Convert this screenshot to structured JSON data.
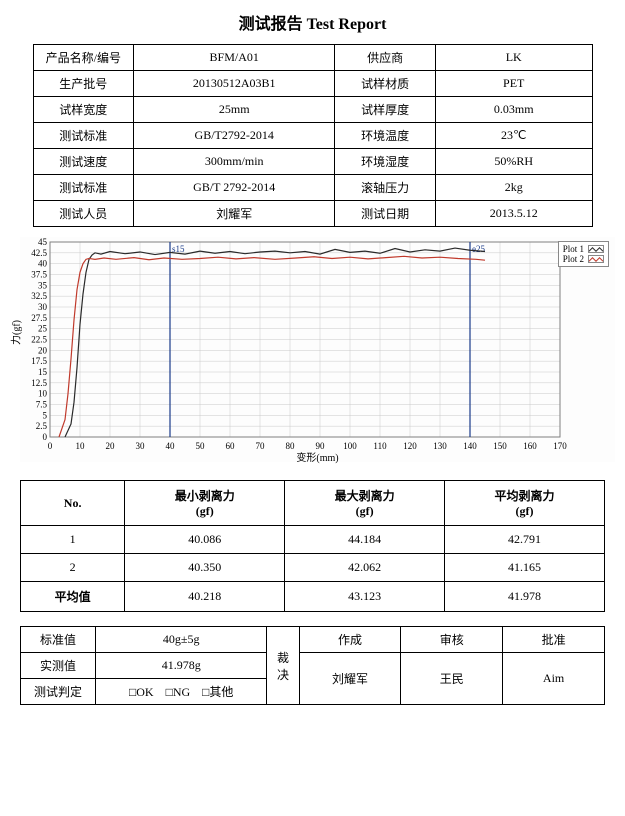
{
  "title": "测试报告 Test Report",
  "info": [
    {
      "l1": "产品名称/编号",
      "v1": "BFM/A01",
      "l2": "供应商",
      "v2": "LK"
    },
    {
      "l1": "生产批号",
      "v1": "20130512A03B1",
      "l2": "试样材质",
      "v2": "PET"
    },
    {
      "l1": "试样宽度",
      "v1": "25mm",
      "l2": "试样厚度",
      "v2": "0.03mm"
    },
    {
      "l1": "测试标准",
      "v1": "GB/T2792-2014",
      "l2": "环境温度",
      "v2": "23℃"
    },
    {
      "l1": "测试速度",
      "v1": "300mm/min",
      "l2": "环境湿度",
      "v2": "50%RH"
    },
    {
      "l1": "测试标准",
      "v1": "GB/T 2792-2014",
      "l2": "滚轴压力",
      "v2": "2kg"
    },
    {
      "l1": "测试人员",
      "v1": "刘耀军",
      "l2": "测试日期",
      "v2": "2013.5.12"
    }
  ],
  "chart": {
    "xlim": [
      0,
      170
    ],
    "ylim": [
      0,
      45
    ],
    "yticks": [
      0,
      2.5,
      5,
      7.5,
      10,
      12.5,
      15,
      17.5,
      20,
      22.5,
      25,
      27.5,
      30,
      32.5,
      35,
      37.5,
      40,
      42.5,
      45
    ],
    "xticks": [
      0,
      10,
      20,
      30,
      40,
      50,
      60,
      70,
      80,
      90,
      100,
      110,
      120,
      130,
      140,
      150,
      160,
      170
    ],
    "xlabel": "变形(mm)",
    "ylabel": "力(gf)",
    "grid_color": "#c9c9c9",
    "axis_color": "#808080",
    "marker_lines": [
      {
        "x": 40,
        "label": "s15",
        "color": "#1a3b8a"
      },
      {
        "x": 140,
        "label": "e25",
        "color": "#1a3b8a"
      }
    ],
    "series": [
      {
        "name": "Plot 1",
        "color": "#2a2a2a",
        "points": [
          [
            5,
            0
          ],
          [
            7,
            3
          ],
          [
            8,
            8
          ],
          [
            9,
            16
          ],
          [
            10,
            26
          ],
          [
            11,
            33
          ],
          [
            12,
            38
          ],
          [
            13,
            41
          ],
          [
            14,
            42
          ],
          [
            15,
            42.5
          ],
          [
            17,
            42.2
          ],
          [
            20,
            42.8
          ],
          [
            25,
            42.3
          ],
          [
            30,
            42.7
          ],
          [
            35,
            42.1
          ],
          [
            40,
            42.6
          ],
          [
            45,
            42.2
          ],
          [
            50,
            42.9
          ],
          [
            55,
            42.4
          ],
          [
            60,
            42.8
          ],
          [
            65,
            42.3
          ],
          [
            70,
            42.7
          ],
          [
            75,
            42.9
          ],
          [
            80,
            42.5
          ],
          [
            85,
            42.8
          ],
          [
            90,
            42.2
          ],
          [
            95,
            43.3
          ],
          [
            100,
            42.6
          ],
          [
            105,
            42.9
          ],
          [
            110,
            42.4
          ],
          [
            115,
            43.5
          ],
          [
            120,
            42.7
          ],
          [
            125,
            43.2
          ],
          [
            130,
            42.9
          ],
          [
            135,
            43.6
          ],
          [
            140,
            43.1
          ],
          [
            145,
            42.8
          ]
        ]
      },
      {
        "name": "Plot 2",
        "color": "#c0392b",
        "points": [
          [
            3,
            0
          ],
          [
            5,
            4
          ],
          [
            6,
            10
          ],
          [
            7,
            18
          ],
          [
            8,
            27
          ],
          [
            9,
            34
          ],
          [
            10,
            38
          ],
          [
            11,
            40
          ],
          [
            12,
            41
          ],
          [
            13,
            41.2
          ],
          [
            15,
            41.0
          ],
          [
            18,
            41.3
          ],
          [
            22,
            41.0
          ],
          [
            28,
            41.4
          ],
          [
            33,
            40.9
          ],
          [
            38,
            41.3
          ],
          [
            44,
            41.0
          ],
          [
            50,
            41.2
          ],
          [
            56,
            41.5
          ],
          [
            62,
            41.1
          ],
          [
            68,
            41.4
          ],
          [
            75,
            41.0
          ],
          [
            82,
            41.3
          ],
          [
            88,
            41.6
          ],
          [
            94,
            41.2
          ],
          [
            100,
            41.5
          ],
          [
            106,
            41.1
          ],
          [
            112,
            41.4
          ],
          [
            118,
            41.7
          ],
          [
            124,
            41.3
          ],
          [
            130,
            41.5
          ],
          [
            136,
            41.2
          ],
          [
            142,
            41.0
          ],
          [
            145,
            40.8
          ]
        ]
      }
    ]
  },
  "results": {
    "headers": [
      "No.",
      "最小剥离力\n(gf)",
      "最大剥离力\n(gf)",
      "平均剥离力\n(gf)"
    ],
    "rows": [
      [
        "1",
        "40.086",
        "44.184",
        "42.791"
      ],
      [
        "2",
        "40.350",
        "42.062",
        "41.165"
      ],
      [
        "平均值",
        "40.218",
        "43.123",
        "41.978"
      ]
    ]
  },
  "footer": {
    "std_label": "标准值",
    "std_value": "40g±5g",
    "meas_label": "实测值",
    "meas_value": "41.978g",
    "judg_label": "测试判定",
    "judg_value": "□OK　□NG　□其他",
    "judge_col": "裁\n决",
    "made_label": "作成",
    "made_value": "刘耀军",
    "rev_label": "审核",
    "rev_value": "王民",
    "app_label": "批准",
    "app_value": "Aim"
  }
}
